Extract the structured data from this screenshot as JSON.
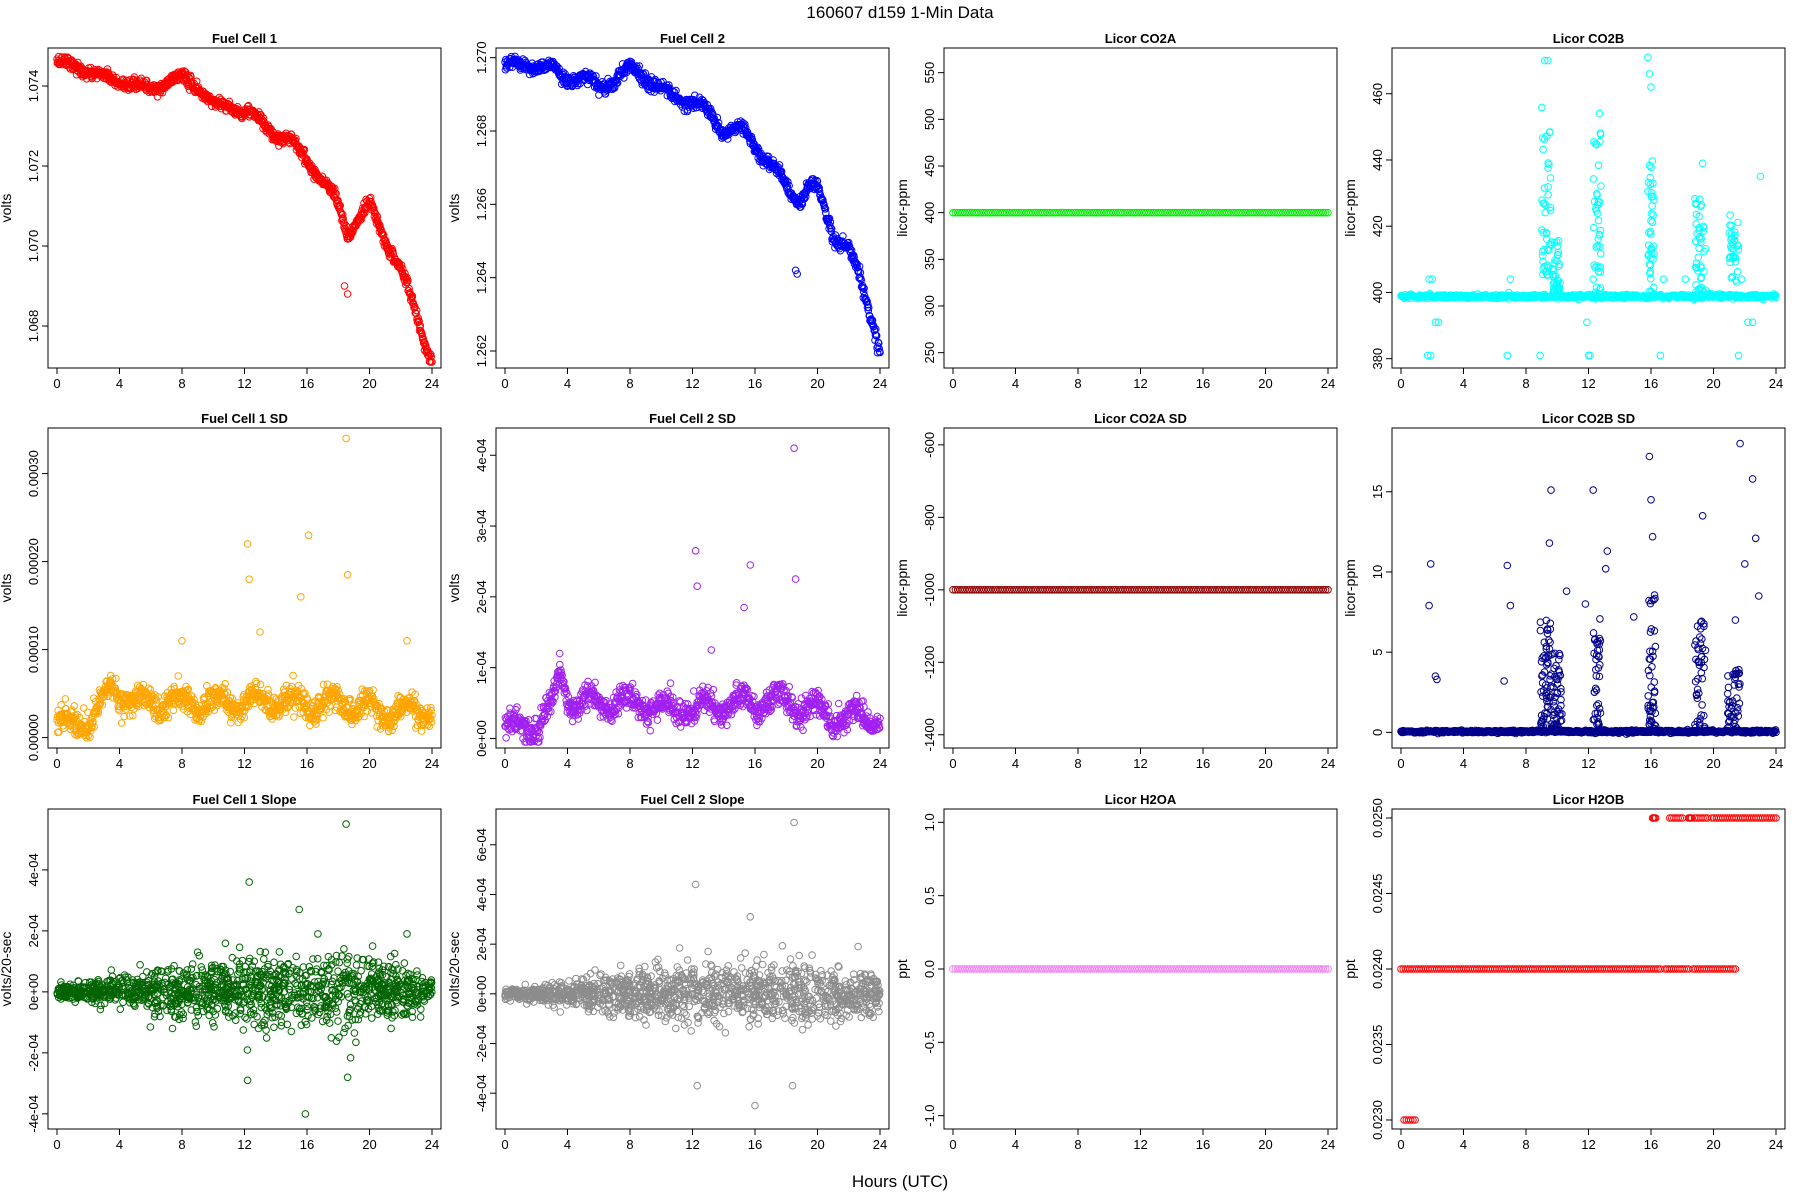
{
  "figure": {
    "title": "160607    d159    1-Min Data",
    "xlabel": "Hours (UTC)"
  },
  "chart_data": [
    {
      "type": "scatter",
      "title": "Fuel Cell 1",
      "xlabel": "",
      "ylabel": "volts",
      "xlim": [
        0,
        24
      ],
      "ylim": [
        1.0671,
        1.0748
      ],
      "xticks": [
        0,
        4,
        8,
        12,
        16,
        20,
        24
      ],
      "yticks": [
        1.068,
        1.07,
        1.072,
        1.074
      ],
      "ytick_labels": [
        "1.068",
        "1.070",
        "1.072",
        "1.074"
      ],
      "color": "#ff0000",
      "series": [
        {
          "shape": "trend",
          "x": [
            0,
            1,
            2,
            3,
            4,
            5,
            6,
            7,
            8,
            9,
            9.7,
            10,
            11,
            12,
            13,
            14,
            15,
            16,
            17,
            18,
            18.6,
            19,
            20,
            21,
            22,
            23,
            24
          ],
          "y": [
            1.0746,
            1.0745,
            1.0744,
            1.0742,
            1.0741,
            1.074,
            1.0739,
            1.0741,
            1.0742,
            1.074,
            1.0737,
            1.0735,
            1.0735,
            1.0734,
            1.0731,
            1.0728,
            1.0726,
            1.0722,
            1.0716,
            1.0711,
            1.0703,
            1.0705,
            1.071,
            1.0702,
            1.0694,
            1.0683,
            1.0671
          ],
          "noise": 0.00012,
          "n": 900
        },
        {
          "shape": "points",
          "x": [
            18.4,
            18.6
          ],
          "y": [
            1.069,
            1.0688
          ]
        }
      ]
    },
    {
      "type": "scatter",
      "title": "Fuel Cell 2",
      "xlabel": "",
      "ylabel": "volts",
      "xlim": [
        0,
        24
      ],
      "ylim": [
        1.2617,
        1.2701
      ],
      "xticks": [
        0,
        4,
        8,
        12,
        16,
        20,
        24
      ],
      "yticks": [
        1.262,
        1.264,
        1.266,
        1.268,
        1.27
      ],
      "ytick_labels": [
        "1.262",
        "1.264",
        "1.266",
        "1.268",
        "1.270"
      ],
      "color": "#0000ff",
      "series": [
        {
          "shape": "trend",
          "x": [
            0,
            2,
            3,
            4,
            5,
            6,
            7,
            8,
            9,
            10,
            11,
            12,
            13,
            14,
            15,
            16,
            17,
            18,
            18.8,
            19.5,
            20,
            21,
            22,
            23,
            24
          ],
          "y": [
            1.2698,
            1.2698,
            1.2697,
            1.2694,
            1.2695,
            1.2692,
            1.2694,
            1.2697,
            1.2695,
            1.2691,
            1.2689,
            1.2688,
            1.2685,
            1.268,
            1.2681,
            1.2676,
            1.2671,
            1.2665,
            1.2661,
            1.2665,
            1.2664,
            1.2652,
            1.2648,
            1.2636,
            1.2621
          ],
          "noise": 0.00014,
          "n": 900
        },
        {
          "shape": "points",
          "x": [
            18.6,
            18.7
          ],
          "y": [
            1.2642,
            1.2641
          ]
        }
      ]
    },
    {
      "type": "scatter",
      "title": "Licor CO2A",
      "xlabel": "",
      "ylabel": "licor-ppm",
      "xlim": [
        0,
        24
      ],
      "ylim": [
        240,
        570
      ],
      "xticks": [
        0,
        4,
        8,
        12,
        16,
        20,
        24
      ],
      "yticks": [
        250,
        300,
        350,
        400,
        450,
        500,
        550
      ],
      "ytick_labels": [
        "250",
        "300",
        "350",
        "400",
        "450",
        "500",
        "550"
      ],
      "color": "#00ee00",
      "series": [
        {
          "shape": "constant",
          "value": 400
        }
      ]
    },
    {
      "type": "scatter",
      "title": "Licor CO2B",
      "xlabel": "",
      "ylabel": "licor-ppm",
      "xlim": [
        0,
        24
      ],
      "ylim": [
        379,
        472
      ],
      "xticks": [
        0,
        4,
        8,
        12,
        16,
        20,
        24
      ],
      "yticks": [
        380,
        400,
        420,
        440,
        460
      ],
      "ytick_labels": [
        "380",
        "400",
        "420",
        "440",
        "460"
      ],
      "color": "#00ffff",
      "series": [
        {
          "shape": "baseline_bursts",
          "baseline": 398.8,
          "noise": 0.3,
          "n": 700,
          "bursts": [
            {
              "x0": 9.0,
              "x1": 9.6,
              "ymin": 405,
              "ymax": 456,
              "n": 45
            },
            {
              "x0": 9.6,
              "x1": 10.2,
              "ymin": 400,
              "ymax": 418,
              "n": 40
            },
            {
              "x0": 12.3,
              "x1": 12.8,
              "ymin": 400,
              "ymax": 453,
              "n": 40
            },
            {
              "x0": 15.8,
              "x1": 16.2,
              "ymin": 400,
              "ymax": 440,
              "n": 40
            },
            {
              "x0": 18.8,
              "x1": 19.5,
              "ymin": 400,
              "ymax": 430,
              "n": 40
            },
            {
              "x0": 21.0,
              "x1": 21.6,
              "ymin": 403,
              "ymax": 424,
              "n": 35
            }
          ],
          "outliers": {
            "x": [
              1.8,
              2.0,
              2.2,
              2.4,
              1.7,
              1.9,
              6.8,
              7.0,
              6.9,
              9.2,
              9.4,
              12.1,
              12.3,
              12.7,
              15.8,
              15.9,
              16.0,
              16.6,
              16.8,
              18.2,
              19.3,
              21.6,
              21.8,
              22.2,
              22.5,
              23.0,
              11.9,
              12.0,
              8.9
            ],
            "y": [
              404,
              404,
              391,
              391,
              381,
              381,
              381,
              404,
              400,
              470,
              470,
              381,
              404,
              454,
              471,
              466,
              462,
              381,
              404,
              404,
              439,
              381,
              404,
              391,
              391,
              435,
              391,
              381,
              381
            ]
          }
        }
      ]
    },
    {
      "type": "scatter",
      "title": "Fuel Cell 1 SD",
      "xlabel": "",
      "ylabel": "volts",
      "xlim": [
        0,
        24
      ],
      "ylim": [
        -5e-06,
        0.000345
      ],
      "xticks": [
        0,
        4,
        8,
        12,
        16,
        20,
        24
      ],
      "yticks": [
        0,
        0.0001,
        0.0002,
        0.0003
      ],
      "ytick_labels": [
        "0.00000",
        "0.00010",
        "0.00020",
        "0.00030"
      ],
      "color": "#ffa500",
      "series": [
        {
          "shape": "trend",
          "x": [
            0,
            1,
            2,
            3,
            3.5,
            4,
            5,
            8,
            10,
            12,
            14,
            16,
            18,
            20,
            21,
            22,
            24
          ],
          "y": [
            1.5e-05,
            1.5e-05,
            1.8e-05,
            4e-05,
            6e-05,
            5e-05,
            4e-05,
            4e-05,
            4e-05,
            4e-05,
            4e-05,
            4e-05,
            4e-05,
            3e-05,
            3e-05,
            3e-05,
            3e-05
          ],
          "noise": 1.2e-05,
          "n": 1000
        },
        {
          "shape": "points",
          "x": [
            12.2,
            12.3,
            15.6,
            16.1,
            18.5,
            18.6,
            8.0,
            13.0,
            22.4
          ],
          "y": [
            0.00022,
            0.00018,
            0.00016,
            0.00023,
            0.00034,
            0.000185,
            0.00011,
            0.00012,
            0.00011
          ]
        }
      ]
    },
    {
      "type": "scatter",
      "title": "Fuel Cell 2 SD",
      "xlabel": "",
      "ylabel": "volts",
      "xlim": [
        0,
        24
      ],
      "ylim": [
        -5e-06,
        0.00043
      ],
      "xticks": [
        0,
        4,
        8,
        12,
        16,
        20,
        24
      ],
      "yticks": [
        0,
        0.0001,
        0.0002,
        0.0003,
        0.0004
      ],
      "ytick_labels": [
        "0e+00",
        "1e-04",
        "2e-04",
        "3e-04",
        "4e-04"
      ],
      "color": "#a020f0",
      "series": [
        {
          "shape": "trend",
          "x": [
            0,
            1,
            2,
            3,
            3.5,
            4,
            5,
            8,
            10,
            12,
            14,
            16,
            18,
            20,
            21,
            22,
            24
          ],
          "y": [
            1.2e-05,
            1.2e-05,
            1.5e-05,
            4e-05,
            9e-05,
            6e-05,
            5e-05,
            5e-05,
            4e-05,
            4e-05,
            5e-05,
            5e-05,
            5e-05,
            4e-05,
            3e-05,
            3e-05,
            3e-05
          ],
          "noise": 1.5e-05,
          "n": 1000
        },
        {
          "shape": "points",
          "x": [
            12.2,
            12.3,
            15.3,
            15.7,
            18.5,
            18.6,
            13.2,
            3.5
          ],
          "y": [
            0.000265,
            0.000215,
            0.000185,
            0.000245,
            0.00041,
            0.000225,
            0.000125,
            0.00012
          ]
        }
      ]
    },
    {
      "type": "scatter",
      "title": "Licor CO2A SD",
      "xlabel": "",
      "ylabel": "licor-ppm",
      "xlim": [
        0,
        24
      ],
      "ylim": [
        -1420,
        -570
      ],
      "xticks": [
        0,
        4,
        8,
        12,
        16,
        20,
        24
      ],
      "yticks": [
        -1400,
        -1200,
        -1000,
        -800,
        -600
      ],
      "ytick_labels": [
        "-1400",
        "-1200",
        "-1000",
        "-800",
        "-600"
      ],
      "color": "#8b0000",
      "series": [
        {
          "shape": "constant",
          "value": -1000
        }
      ]
    },
    {
      "type": "scatter",
      "title": "Licor CO2B SD",
      "xlabel": "",
      "ylabel": "licor-ppm",
      "xlim": [
        0,
        24
      ],
      "ylim": [
        -0.6,
        18.6
      ],
      "xticks": [
        0,
        4,
        8,
        12,
        16,
        20,
        24
      ],
      "yticks": [
        0,
        5,
        10,
        15
      ],
      "ytick_labels": [
        "0",
        "5",
        "10",
        "15"
      ],
      "color": "#00008b",
      "series": [
        {
          "shape": "baseline_bursts",
          "baseline": 0.05,
          "noise": 0.04,
          "n": 700,
          "bursts": [
            {
              "x0": 8.9,
              "x1": 9.6,
              "ymin": 0.3,
              "ymax": 7.0,
              "n": 60
            },
            {
              "x0": 9.6,
              "x1": 10.3,
              "ymin": 0.2,
              "ymax": 5.0,
              "n": 50
            },
            {
              "x0": 12.3,
              "x1": 12.8,
              "ymin": 0.2,
              "ymax": 8.0,
              "n": 40
            },
            {
              "x0": 15.8,
              "x1": 16.3,
              "ymin": 0.2,
              "ymax": 9.0,
              "n": 45
            },
            {
              "x0": 18.8,
              "x1": 19.5,
              "ymin": 0.2,
              "ymax": 7.0,
              "n": 45
            },
            {
              "x0": 20.9,
              "x1": 21.7,
              "ymin": 0.2,
              "ymax": 4.0,
              "n": 45
            }
          ],
          "outliers": {
            "x": [
              1.8,
              1.9,
              2.2,
              2.3,
              6.8,
              7.0,
              9.5,
              9.6,
              11.8,
              12.3,
              13.1,
              13.2,
              15.9,
              16.0,
              16.1,
              19.3,
              21.7,
              22.0,
              22.5,
              22.7,
              22.9,
              21.4,
              14.9,
              6.6,
              10.6
            ],
            "y": [
              7.9,
              10.5,
              3.5,
              3.3,
              10.4,
              7.9,
              11.8,
              15.1,
              8.0,
              15.1,
              10.2,
              11.3,
              17.2,
              14.5,
              12.2,
              13.5,
              18.0,
              10.5,
              15.8,
              12.1,
              8.5,
              7.0,
              7.2,
              3.2,
              8.8
            ]
          }
        }
      ]
    },
    {
      "type": "scatter",
      "title": "Fuel Cell 1 Slope",
      "xlabel": "",
      "ylabel": "volts/20-sec",
      "xlim": [
        0,
        24
      ],
      "ylim": [
        -0.00043,
        0.00058
      ],
      "xticks": [
        0,
        4,
        8,
        12,
        16,
        20,
        24
      ],
      "yticks": [
        -0.0004,
        -0.0002,
        0,
        0.0002,
        0.0004
      ],
      "ytick_labels": [
        "-4e-04",
        "-2e-04",
        "0e+00",
        "2e-04",
        "4e-04"
      ],
      "color": "#006400",
      "series": [
        {
          "shape": "noise_band",
          "x": [
            0,
            3,
            5,
            7,
            12,
            16,
            19,
            22,
            24
          ],
          "spread": [
            1.2e-05,
            2e-05,
            3e-05,
            4.5e-05,
            5.5e-05,
            6e-05,
            6e-05,
            4.5e-05,
            3e-05
          ],
          "center": 0,
          "n": 1300
        },
        {
          "shape": "points",
          "x": [
            12.3,
            15.5,
            18.5,
            18.6,
            12.2,
            15.9,
            16.7,
            20.2,
            22.4,
            9.0
          ],
          "y": [
            0.00036,
            0.00027,
            0.00055,
            -0.00028,
            -0.00029,
            -0.0004,
            0.00019,
            0.00015,
            0.00019,
            0.00013
          ]
        }
      ]
    },
    {
      "type": "scatter",
      "title": "Fuel Cell 2 Slope",
      "xlabel": "",
      "ylabel": "volts/20-sec",
      "xlim": [
        0,
        24
      ],
      "ylim": [
        -0.00052,
        0.00072
      ],
      "xticks": [
        0,
        4,
        8,
        12,
        16,
        20,
        24
      ],
      "yticks": [
        -0.0004,
        -0.0002,
        0,
        0.0002,
        0.0004,
        0.0006
      ],
      "ytick_labels": [
        "-4e-04",
        "-2e-04",
        "0e+00",
        "2e-04",
        "4e-04",
        "6e-04"
      ],
      "color": "#8c8c8c",
      "series": [
        {
          "shape": "noise_band",
          "x": [
            0,
            3,
            5,
            7,
            12,
            16,
            19,
            22,
            24
          ],
          "spread": [
            1.2e-05,
            2e-05,
            3e-05,
            5e-05,
            6e-05,
            6e-05,
            6e-05,
            5e-05,
            3e-05
          ],
          "center": 0,
          "n": 1300
        },
        {
          "shape": "points",
          "x": [
            12.2,
            12.3,
            15.7,
            16.0,
            18.5,
            18.4,
            22.6,
            13.0
          ],
          "y": [
            0.00044,
            -0.00037,
            0.00031,
            -0.00045,
            0.00069,
            -0.00037,
            0.00019,
            0.00017
          ]
        }
      ]
    },
    {
      "type": "scatter",
      "title": "Licor H2OA",
      "xlabel": "",
      "ylabel": "ppt",
      "xlim": [
        0,
        24
      ],
      "ylim": [
        -1.05,
        1.05
      ],
      "xticks": [
        0,
        4,
        8,
        12,
        16,
        20,
        24
      ],
      "yticks": [
        -1.0,
        -0.5,
        0.0,
        0.5,
        1.0
      ],
      "ytick_labels": [
        "-1.0",
        "-0.5",
        "0.0",
        "0.5",
        "1.0"
      ],
      "color": "#ee82ee",
      "series": [
        {
          "shape": "constant",
          "value": 0
        }
      ]
    },
    {
      "type": "scatter",
      "title": "Licor H2OB",
      "xlabel": "",
      "ylabel": "ppt",
      "xlim": [
        0,
        24
      ],
      "ylim": [
        0.02298,
        0.02502
      ],
      "xticks": [
        0,
        4,
        8,
        12,
        16,
        20,
        24
      ],
      "yticks": [
        0.023,
        0.0235,
        0.024,
        0.0245,
        0.025
      ],
      "ytick_labels": [
        "0.0230",
        "0.0235",
        "0.0240",
        "0.0245",
        "0.0250"
      ],
      "color": "#ff0000",
      "series": [
        {
          "shape": "segments",
          "value": 0.024,
          "ranges": [
            [
              0.0,
              16.6
            ],
            [
              16.9,
              18.4
            ],
            [
              18.7,
              21.4
            ]
          ]
        },
        {
          "shape": "segments",
          "value": 0.025,
          "ranges": [
            [
              16.1,
              16.3
            ],
            [
              17.2,
              18.0
            ],
            [
              18.4,
              18.6
            ],
            [
              18.8,
              19.6
            ],
            [
              19.9,
              24.0
            ]
          ]
        },
        {
          "shape": "segments",
          "value": 0.023,
          "ranges": [
            [
              0.2,
              0.9
            ]
          ]
        }
      ]
    }
  ]
}
